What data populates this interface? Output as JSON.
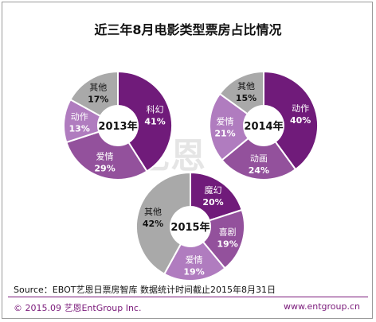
{
  "title": "近三年8月电影类型票房占比情况",
  "watermark": "艺恩",
  "footer": {
    "source": "Source：EBOT艺恩日票房智库  数据统计时间截止2015年8月31日",
    "copyright": "© 2015.09  艺恩EntGroup Inc.",
    "website": "www.entgroup.cn"
  },
  "colors": {
    "dark_purple": "#701b7a",
    "mid_purple": "#93519c",
    "light_purple": "#b07cbf",
    "gray": "#a9a9a9"
  },
  "chart_data": [
    {
      "type": "pie",
      "center_label": "2013年",
      "slices": [
        {
          "label": "科幻",
          "value": 41,
          "value_label": "41%",
          "color": "#701b7a"
        },
        {
          "label": "爱情",
          "value": 29,
          "value_label": "29%",
          "color": "#93519c"
        },
        {
          "label": "动作",
          "value": 13,
          "value_label": "13%",
          "color": "#b07cbf"
        },
        {
          "label": "其他",
          "value": 17,
          "value_label": "17%",
          "color": "#a9a9a9"
        }
      ]
    },
    {
      "type": "pie",
      "center_label": "2014年",
      "slices": [
        {
          "label": "动作",
          "value": 40,
          "value_label": "40%",
          "color": "#701b7a"
        },
        {
          "label": "动画",
          "value": 24,
          "value_label": "24%",
          "color": "#93519c"
        },
        {
          "label": "爱情",
          "value": 21,
          "value_label": "21%",
          "color": "#b07cbf"
        },
        {
          "label": "其他",
          "value": 15,
          "value_label": "15%",
          "color": "#a9a9a9"
        }
      ]
    },
    {
      "type": "pie",
      "center_label": "2015年",
      "slices": [
        {
          "label": "魔幻",
          "value": 20,
          "value_label": "20%",
          "color": "#701b7a"
        },
        {
          "label": "喜剧",
          "value": 19,
          "value_label": "19%",
          "color": "#93519c"
        },
        {
          "label": "爱情",
          "value": 19,
          "value_label": "19%",
          "color": "#b07cbf"
        },
        {
          "label": "其他",
          "value": 42,
          "value_label": "42%",
          "color": "#a9a9a9"
        }
      ]
    }
  ]
}
